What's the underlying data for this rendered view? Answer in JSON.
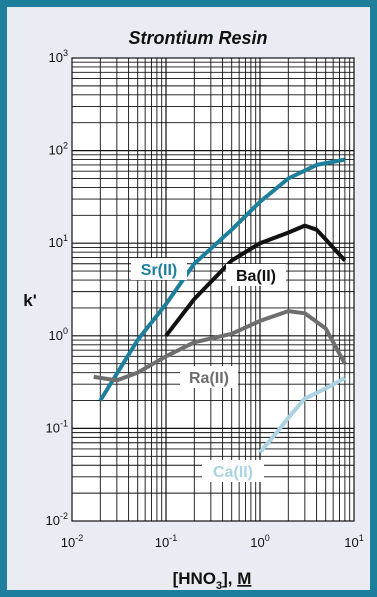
{
  "chart_data": {
    "type": "line",
    "title": "Strontium Resin",
    "xlabel_parts": [
      "[HNO",
      "3",
      "], ",
      "M"
    ],
    "ylabel": "k'",
    "x_scale": "log",
    "y_scale": "log",
    "xlim": [
      0.01,
      10
    ],
    "ylim": [
      0.01,
      1000
    ],
    "grid": true,
    "x_ticks": [
      {
        "base": "10",
        "exp": "-2"
      },
      {
        "base": "10",
        "exp": "-1"
      },
      {
        "base": "10",
        "exp": "0"
      },
      {
        "base": "10",
        "exp": "1"
      }
    ],
    "y_ticks": [
      {
        "base": "10",
        "exp": "-2"
      },
      {
        "base": "10",
        "exp": "-1"
      },
      {
        "base": "10",
        "exp": "0"
      },
      {
        "base": "10",
        "exp": "1"
      },
      {
        "base": "10",
        "exp": "2"
      },
      {
        "base": "10",
        "exp": "3"
      }
    ],
    "series": [
      {
        "name": "Sr(II)",
        "color": "#1e7f9c",
        "x": [
          0.02,
          0.05,
          0.1,
          0.2,
          0.5,
          1,
          2,
          4,
          8
        ],
        "y": [
          0.2,
          0.9,
          2.2,
          6,
          14,
          28,
          50,
          70,
          80
        ]
      },
      {
        "name": "Ba(II)",
        "color": "#111111",
        "x": [
          0.1,
          0.2,
          0.5,
          1,
          2,
          3,
          4,
          5,
          8
        ],
        "y": [
          1,
          2.5,
          6.5,
          10,
          13,
          15.5,
          14,
          11,
          6.5
        ]
      },
      {
        "name": "Ra(II)",
        "color": "#6e6e6e",
        "x": [
          0.017,
          0.03,
          0.05,
          0.1,
          0.2,
          0.5,
          1,
          2,
          3,
          5,
          8
        ],
        "y": [
          0.36,
          0.33,
          0.4,
          0.6,
          0.85,
          1.05,
          1.45,
          1.85,
          1.75,
          1.2,
          0.5
        ]
      },
      {
        "name": "Ca(II)",
        "color": "#aad3e2",
        "x": [
          1,
          1.5,
          2,
          3,
          5,
          8
        ],
        "y": [
          0.055,
          0.09,
          0.13,
          0.21,
          0.27,
          0.35
        ]
      }
    ]
  }
}
